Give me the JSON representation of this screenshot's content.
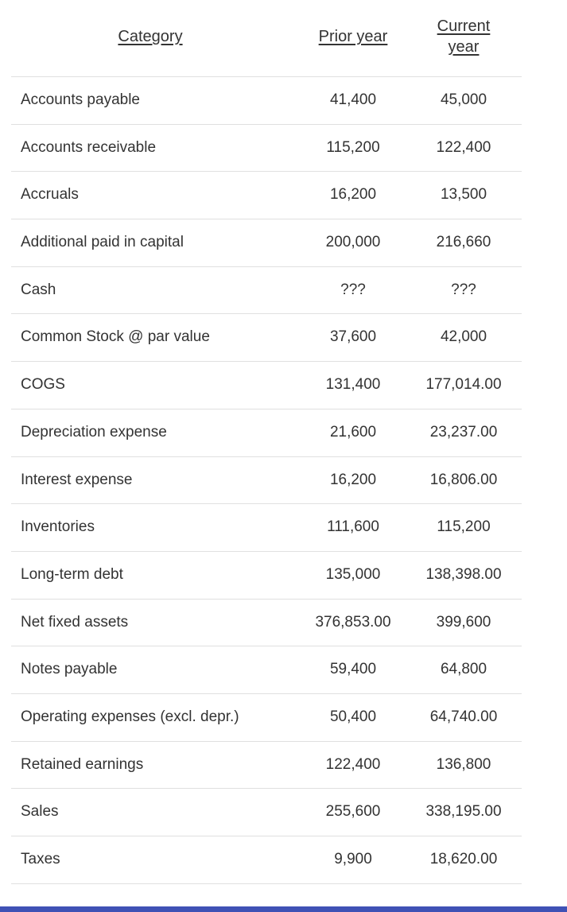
{
  "table": {
    "headers": {
      "category": "Category",
      "prior_year": "Prior year",
      "current_year": "Current year"
    },
    "rows": [
      {
        "category": "Accounts payable",
        "prior": "41,400",
        "current": "45,000"
      },
      {
        "category": "Accounts receivable",
        "prior": "115,200",
        "current": "122,400"
      },
      {
        "category": "Accruals",
        "prior": "16,200",
        "current": "13,500"
      },
      {
        "category": "Additional paid in capital",
        "prior": "200,000",
        "current": "216,660"
      },
      {
        "category": "Cash",
        "prior": "???",
        "current": "???"
      },
      {
        "category": "Common Stock @ par value",
        "prior": "37,600",
        "current": "42,000"
      },
      {
        "category": "COGS",
        "prior": "131,400",
        "current": "177,014.00"
      },
      {
        "category": "Depreciation expense",
        "prior": "21,600",
        "current": "23,237.00"
      },
      {
        "category": "Interest expense",
        "prior": "16,200",
        "current": "16,806.00"
      },
      {
        "category": "Inventories",
        "prior": "111,600",
        "current": "115,200"
      },
      {
        "category": "Long-term debt",
        "prior": "135,000",
        "current": "138,398.00"
      },
      {
        "category": "Net fixed assets",
        "prior": "376,853.00",
        "current": "399,600"
      },
      {
        "category": "Notes payable",
        "prior": "59,400",
        "current": "64,800"
      },
      {
        "category": "Operating expenses (excl. depr.)",
        "prior": "50,400",
        "current": "64,740.00"
      },
      {
        "category": "Retained earnings",
        "prior": "122,400",
        "current": "136,800"
      },
      {
        "category": "Sales",
        "prior": "255,600",
        "current": "338,195.00"
      },
      {
        "category": "Taxes",
        "prior": "9,900",
        "current": "18,620.00"
      }
    ]
  },
  "colors": {
    "background": "#ffffff",
    "text": "#333333",
    "row_divider": "#e0e0e0",
    "bottom_bar": "#3f51b5"
  }
}
